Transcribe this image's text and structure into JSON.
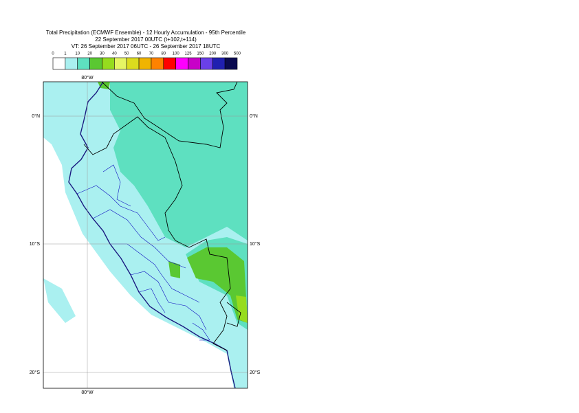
{
  "header": {
    "title": "Total Precipitation (ECMWF Ensemble) - 12 Hourly Accumulation - 95th Percentile",
    "line2": "22 September 2017 00UTC (t+102,t+114)",
    "line3": "VT: 26 September 2017 06UTC - 26 September 2017 18UTC"
  },
  "legend": {
    "labels": [
      0,
      1,
      10,
      20,
      30,
      40,
      50,
      60,
      70,
      80,
      100,
      125,
      150,
      200,
      300,
      500
    ],
    "colors": [
      "#ffffff",
      "#aaf0f0",
      "#5ee0c0",
      "#5ac832",
      "#96dc1e",
      "#e6f564",
      "#dcdc1e",
      "#f0b400",
      "#ff8200",
      "#ff0000",
      "#ff00ff",
      "#c800c8",
      "#6a40e8",
      "#2020b0",
      "#0a0a50"
    ]
  },
  "map": {
    "lon_labels": [
      "80°W"
    ],
    "lat_labels": [
      "0°N",
      "10°S",
      "20°S"
    ]
  }
}
